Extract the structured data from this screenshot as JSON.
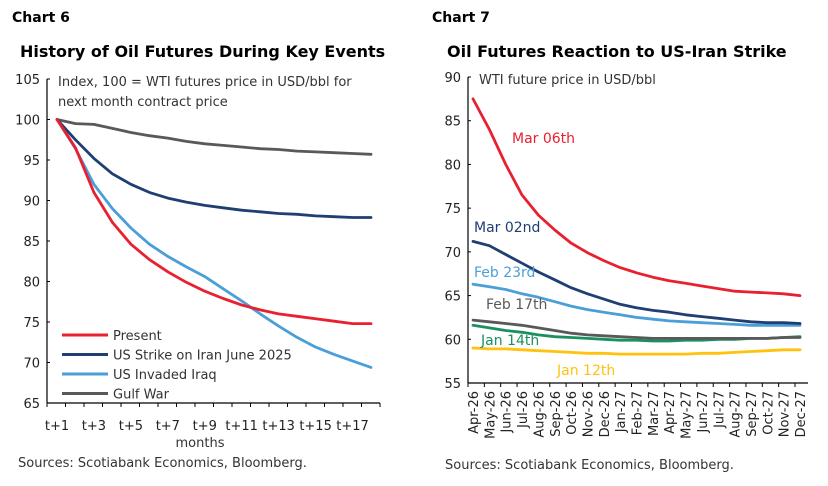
{
  "chart_data": [
    {
      "type": "line",
      "header": "Chart 6",
      "title": "History of Oil Futures During Key Events",
      "subtitle_lines": [
        "Index, 100 = WTI futures price in USD/bbl for",
        "next month contract price"
      ],
      "xlabel": "months",
      "ylabel": "",
      "x": [
        "t+1",
        "t+2",
        "t+3",
        "t+4",
        "t+5",
        "t+6",
        "t+7",
        "t+8",
        "t+9",
        "t+10",
        "t+11",
        "t+12",
        "t+13",
        "t+14",
        "t+15",
        "t+16",
        "t+17",
        "t+18"
      ],
      "x_tick_labels": [
        "t+1",
        "t+3",
        "t+5",
        "t+7",
        "t+9",
        "t+11",
        "t+13",
        "t+15",
        "t+17"
      ],
      "ylim": [
        65,
        105
      ],
      "y_ticks": [
        65,
        70,
        75,
        80,
        85,
        90,
        95,
        100,
        105
      ],
      "grid": false,
      "legend": "bottom-left",
      "series": [
        {
          "name": "Present",
          "color": "#e8202f",
          "values": [
            100,
            96.5,
            91.0,
            87.3,
            84.6,
            82.7,
            81.2,
            79.9,
            78.8,
            77.9,
            77.1,
            76.5,
            76.0,
            75.7,
            75.4,
            75.1,
            74.8,
            74.8
          ]
        },
        {
          "name": "US Strike on Iran June 2025",
          "color": "#1f3f73",
          "values": [
            100,
            97.5,
            95.2,
            93.3,
            92.0,
            91.0,
            90.3,
            89.8,
            89.4,
            89.1,
            88.8,
            88.6,
            88.4,
            88.3,
            88.1,
            88.0,
            87.9,
            87.9
          ]
        },
        {
          "name": "US Invaded Iraq",
          "color": "#4a9fd8",
          "values": [
            100,
            96.4,
            92.0,
            89.0,
            86.6,
            84.6,
            83.1,
            81.8,
            80.6,
            79.1,
            77.6,
            76.0,
            74.5,
            73.1,
            71.9,
            71.0,
            70.2,
            69.4
          ]
        },
        {
          "name": "Gulf War",
          "color": "#595959",
          "values": [
            100,
            99.5,
            99.4,
            98.9,
            98.4,
            98.0,
            97.7,
            97.3,
            97.0,
            96.8,
            96.6,
            96.4,
            96.3,
            96.1,
            96.0,
            95.9,
            95.8,
            95.7
          ]
        }
      ],
      "source": "Sources: Scotiabank Economics, Bloomberg."
    },
    {
      "type": "line",
      "header": "Chart 7",
      "title": "Oil Futures Reaction to US-Iran Strike",
      "subtitle_lines": [
        "WTI future price in USD/bbl"
      ],
      "xlabel": "",
      "ylabel": "",
      "x": [
        "Apr-26",
        "May-26",
        "Jun-26",
        "Jul-26",
        "Aug-26",
        "Sep-26",
        "Oct-26",
        "Nov-26",
        "Dec-26",
        "Jan-27",
        "Feb-27",
        "Mar-27",
        "Apr-27",
        "May-27",
        "Jun-27",
        "Jul-27",
        "Aug-27",
        "Sep-27",
        "Oct-27",
        "Nov-27",
        "Dec-27"
      ],
      "x_tick_labels": [
        "Apr-26",
        "May-26",
        "Jun-26",
        "Jul-26",
        "Aug-26",
        "Sep-26",
        "Oct-26",
        "Nov-26",
        "Dec-26",
        "Jan-27",
        "Feb-27",
        "Mar-27",
        "Apr-27",
        "May-27",
        "Jun-27",
        "Jul-27",
        "Aug-27",
        "Sep-27",
        "Oct-27",
        "Nov-27",
        "Dec-27"
      ],
      "ylim": [
        55,
        90
      ],
      "y_ticks": [
        55,
        60,
        65,
        70,
        75,
        80,
        85,
        90
      ],
      "grid": false,
      "legend": "inline labels",
      "series": [
        {
          "name": "Mar 06th",
          "color": "#e8202f",
          "values": [
            87.5,
            84.0,
            80.0,
            76.5,
            74.2,
            72.5,
            71.0,
            69.9,
            69.0,
            68.2,
            67.6,
            67.1,
            66.7,
            66.4,
            66.1,
            65.8,
            65.5,
            65.4,
            65.3,
            65.2,
            65.0
          ]
        },
        {
          "name": "Mar 02nd",
          "color": "#1f3f73",
          "values": [
            71.2,
            70.7,
            69.7,
            68.7,
            67.7,
            66.8,
            65.9,
            65.2,
            64.6,
            64.0,
            63.6,
            63.3,
            63.1,
            62.8,
            62.6,
            62.4,
            62.2,
            62.0,
            61.9,
            61.9,
            61.8
          ]
        },
        {
          "name": "Feb 23rd",
          "color": "#4a9fd8",
          "values": [
            66.3,
            66.0,
            65.7,
            65.2,
            64.8,
            64.3,
            63.8,
            63.4,
            63.1,
            62.8,
            62.5,
            62.3,
            62.1,
            62.0,
            61.9,
            61.8,
            61.7,
            61.6,
            61.6,
            61.6,
            61.6
          ]
        },
        {
          "name": "Feb 17th",
          "color": "#595959",
          "values": [
            62.2,
            62.0,
            61.8,
            61.6,
            61.3,
            61.0,
            60.7,
            60.5,
            60.4,
            60.3,
            60.2,
            60.1,
            60.1,
            60.1,
            60.1,
            60.1,
            60.1,
            60.1,
            60.1,
            60.2,
            60.2
          ]
        },
        {
          "name": "Jan 14th",
          "color": "#1a9060",
          "values": [
            61.6,
            61.3,
            61.0,
            60.8,
            60.5,
            60.3,
            60.2,
            60.1,
            60.0,
            59.9,
            59.9,
            59.8,
            59.8,
            59.9,
            59.9,
            60.0,
            60.0,
            60.1,
            60.1,
            60.2,
            60.3
          ]
        },
        {
          "name": "Jan 12th",
          "color": "#ffc20e",
          "values": [
            59.0,
            58.9,
            58.9,
            58.8,
            58.7,
            58.6,
            58.5,
            58.4,
            58.4,
            58.3,
            58.3,
            58.3,
            58.3,
            58.3,
            58.4,
            58.4,
            58.5,
            58.6,
            58.7,
            58.8,
            58.8
          ]
        }
      ],
      "source": "Sources: Scotiabank Economics, Bloomberg."
    }
  ]
}
